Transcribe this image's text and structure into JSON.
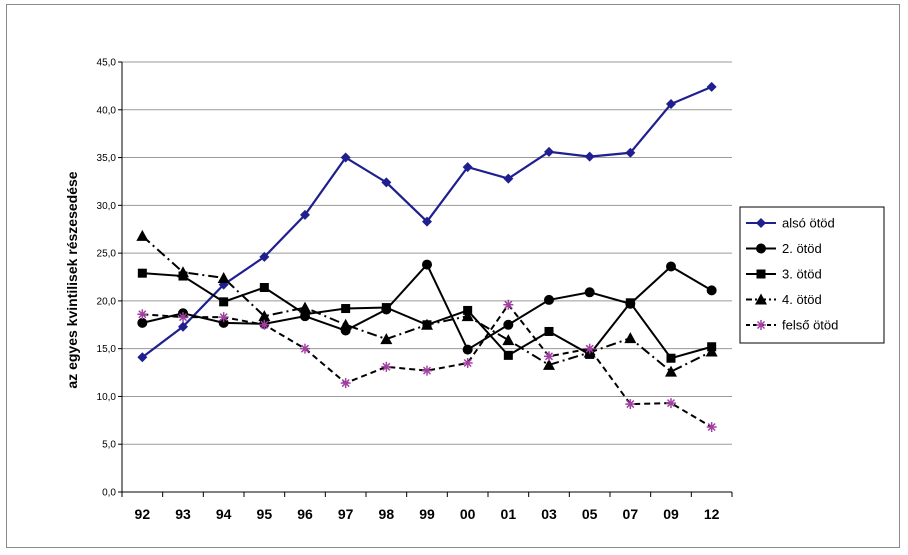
{
  "chart_data": {
    "type": "line",
    "ylabel": "az egyes kvintilisek részesedése",
    "xlabel": "",
    "categories": [
      "92",
      "93",
      "94",
      "95",
      "96",
      "97",
      "98",
      "99",
      "00",
      "01",
      "03",
      "05",
      "07",
      "09",
      "12"
    ],
    "y_ticks": [
      "0,0",
      "5,0",
      "10,0",
      "15,0",
      "20,0",
      "25,0",
      "30,0",
      "35,0",
      "40,0",
      "45,0"
    ],
    "ylim": [
      0,
      45
    ],
    "grid": "horizontal",
    "legend_position": "right",
    "series": [
      {
        "name": "alsó ötöd",
        "color": "#1f1f8f",
        "marker": "diamond",
        "dash": "solid",
        "values": [
          14.1,
          17.3,
          21.7,
          24.6,
          29.0,
          35.0,
          32.4,
          28.3,
          34.0,
          32.8,
          35.6,
          35.1,
          35.5,
          40.6,
          42.4
        ]
      },
      {
        "name": "2. ötöd",
        "color": "#000000",
        "marker": "circle",
        "dash": "solid",
        "values": [
          17.7,
          18.7,
          17.7,
          17.6,
          18.4,
          16.9,
          19.1,
          23.8,
          14.9,
          17.5,
          20.1,
          20.9,
          19.7,
          23.6,
          21.1
        ]
      },
      {
        "name": "3. ötöd",
        "color": "#000000",
        "marker": "square",
        "dash": "solid",
        "values": [
          22.9,
          22.6,
          19.9,
          21.4,
          18.6,
          19.2,
          19.3,
          17.5,
          19.0,
          14.3,
          16.8,
          14.4,
          19.8,
          14.0,
          15.2
        ]
      },
      {
        "name": "4. ötöd",
        "color": "#000000",
        "marker": "triangle",
        "dash": "dashdot",
        "values": [
          26.8,
          23.0,
          22.4,
          18.4,
          19.3,
          17.5,
          16.0,
          17.5,
          18.4,
          15.9,
          13.3,
          14.6,
          16.1,
          12.6,
          14.7
        ]
      },
      {
        "name": "felső ötöd",
        "color": "#000000",
        "marker": "star",
        "markerColor": "#a040a0",
        "dash": "dashed",
        "values": [
          18.6,
          18.3,
          18.3,
          17.5,
          15.0,
          11.4,
          13.1,
          12.7,
          13.5,
          19.6,
          14.2,
          15.0,
          9.2,
          9.3,
          6.8
        ]
      }
    ]
  }
}
